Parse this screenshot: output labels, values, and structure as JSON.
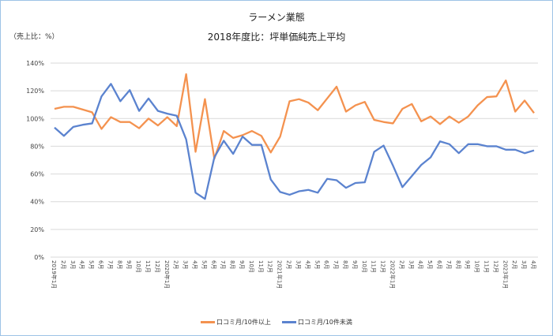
{
  "chart_data": {
    "type": "line",
    "title": "ラーメン業態",
    "subtitle": "2018年度比：坪単価純売上平均",
    "ylabel": "（売上比：%）",
    "ylim": [
      0,
      140
    ],
    "yticks": [
      "0%",
      "20%",
      "40%",
      "60%",
      "80%",
      "100%",
      "120%",
      "140%"
    ],
    "grid": true,
    "legend_position": "bottom",
    "categories": [
      "2019年1月",
      "2月",
      "3月",
      "4月",
      "5月",
      "6月",
      "7月",
      "8月",
      "9月",
      "10月",
      "11月",
      "12月",
      "2020年1月",
      "2月",
      "3月",
      "4月",
      "5月",
      "6月",
      "7月",
      "8月",
      "9月",
      "10月",
      "11月",
      "12月",
      "2021年1月",
      "2月",
      "3月",
      "4月",
      "5月",
      "6月",
      "7月",
      "8月",
      "9月",
      "10月",
      "11月",
      "12月",
      "2022年1月",
      "2月",
      "3月",
      "4月",
      "5月",
      "6月",
      "7月",
      "8月",
      "9月",
      "10月",
      "11月",
      "12月",
      "2023年1月",
      "2月",
      "3月",
      "4月"
    ],
    "series": [
      {
        "name": "口コミ月/10件以上",
        "color": "#f4924f",
        "values": [
          107,
          108.5,
          108.5,
          106.5,
          104.5,
          92.5,
          101,
          97.5,
          97.5,
          93,
          100,
          95,
          101,
          94.5,
          132,
          76,
          114,
          71,
          91,
          86,
          88,
          91,
          87.5,
          75.5,
          87,
          112.5,
          114,
          111.5,
          106,
          114.5,
          123,
          105,
          109.5,
          112,
          99,
          97.5,
          96.5,
          107,
          110.5,
          98,
          101.5,
          96,
          101.5,
          97,
          101.5,
          109.5,
          115.5,
          116,
          127.5,
          105,
          113,
          104
        ]
      },
      {
        "name": "口コミ月/10件未満",
        "color": "#5b83cf",
        "values": [
          93.5,
          87.5,
          94,
          95.5,
          96.5,
          116,
          125,
          112.5,
          120.5,
          105.5,
          114.5,
          105.5,
          103.5,
          102,
          85,
          46.5,
          42,
          72,
          84,
          74.5,
          87,
          81,
          81,
          56,
          47,
          45,
          47.5,
          48.5,
          46.5,
          56.5,
          55.5,
          50,
          53.5,
          54,
          76,
          80.5,
          66,
          50.5,
          58.5,
          66.5,
          72,
          83.5,
          81.5,
          75,
          81.5,
          81.5,
          80,
          80,
          77.5,
          77.5,
          75,
          77
        ]
      }
    ]
  }
}
